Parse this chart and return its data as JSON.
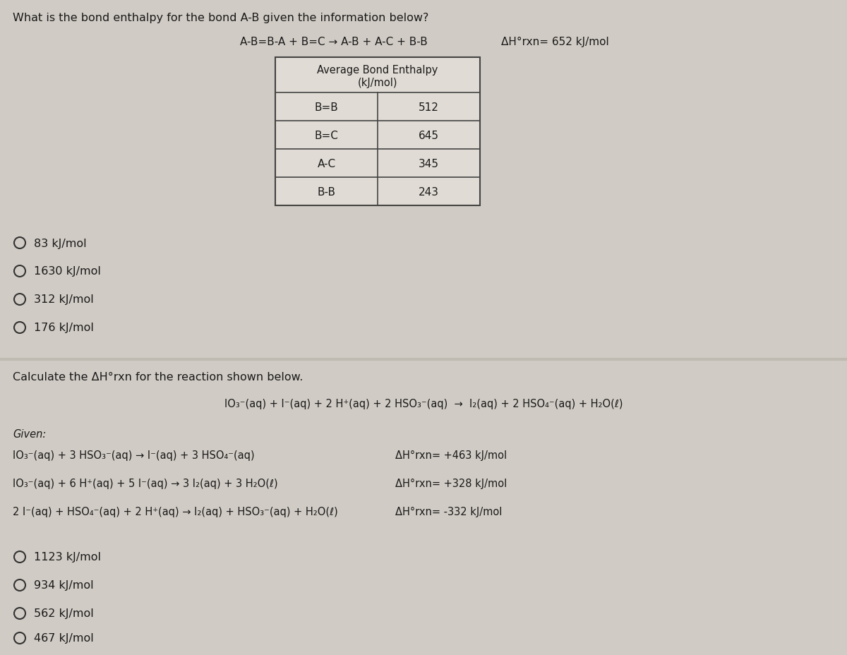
{
  "bg_color": "#d0cbc4",
  "divider_color": "#bfbab2",
  "q1_title": "What is the bond enthalpy for the bond A-B given the information below?",
  "q1_equation": "A-B=B-A + B=C → A-B + A-C + B-B",
  "q1_dH": "ΔH°rxn= 652 kJ/mol",
  "table_header1": "Average Bond Enthalpy",
  "table_header2": "(kJ/mol)",
  "table_rows": [
    [
      "B=B",
      "512"
    ],
    [
      "B=C",
      "645"
    ],
    [
      "A-C",
      "345"
    ],
    [
      "B-B",
      "243"
    ]
  ],
  "q1_options": [
    "83 kJ/mol",
    "1630 kJ/mol",
    "312 kJ/mol",
    "176 kJ/mol"
  ],
  "q2_title": "Calculate the ΔH°rxn for the reaction shown below.",
  "q2_main_rxn": "IO₃⁻(aq) + I⁻(aq) + 2 H⁺(aq) + 2 HSO₃⁻(aq)  →  I₂(aq) + 2 HSO₄⁻(aq) + H₂O(ℓ)",
  "q2_given_label": "Given:",
  "q2_rxn1": "IO₃⁻(aq) + 3 HSO₃⁻(aq) → I⁻(aq) + 3 HSO₄⁻(aq)",
  "q2_rxn1_dH": "ΔH°rxn= +463 kJ/mol",
  "q2_rxn2": "IO₃⁻(aq) + 6 H⁺(aq) + 5 I⁻(aq) → 3 I₂(aq) + 3 H₂O(ℓ)",
  "q2_rxn2_dH": "ΔH°rxn= +328 kJ/mol",
  "q2_rxn3": "2 I⁻(aq) + HSO₄⁻(aq) + 2 H⁺(aq) → I₂(aq) + HSO₃⁻(aq) + H₂O(ℓ)",
  "q2_rxn3_dH": "ΔH°rxn= -332 kJ/mol",
  "q2_options": [
    "1123 kJ/mol",
    "934 kJ/mol",
    "562 kJ/mol",
    "467 kJ/mol"
  ],
  "text_color": "#1a1a1a",
  "table_border_color": "#444444",
  "table_cell_bg": "#e0dbd4",
  "circle_color": "#333333",
  "title_fontsize": 11.5,
  "body_fontsize": 11,
  "small_fontsize": 10.5,
  "option_fontsize": 11.5
}
